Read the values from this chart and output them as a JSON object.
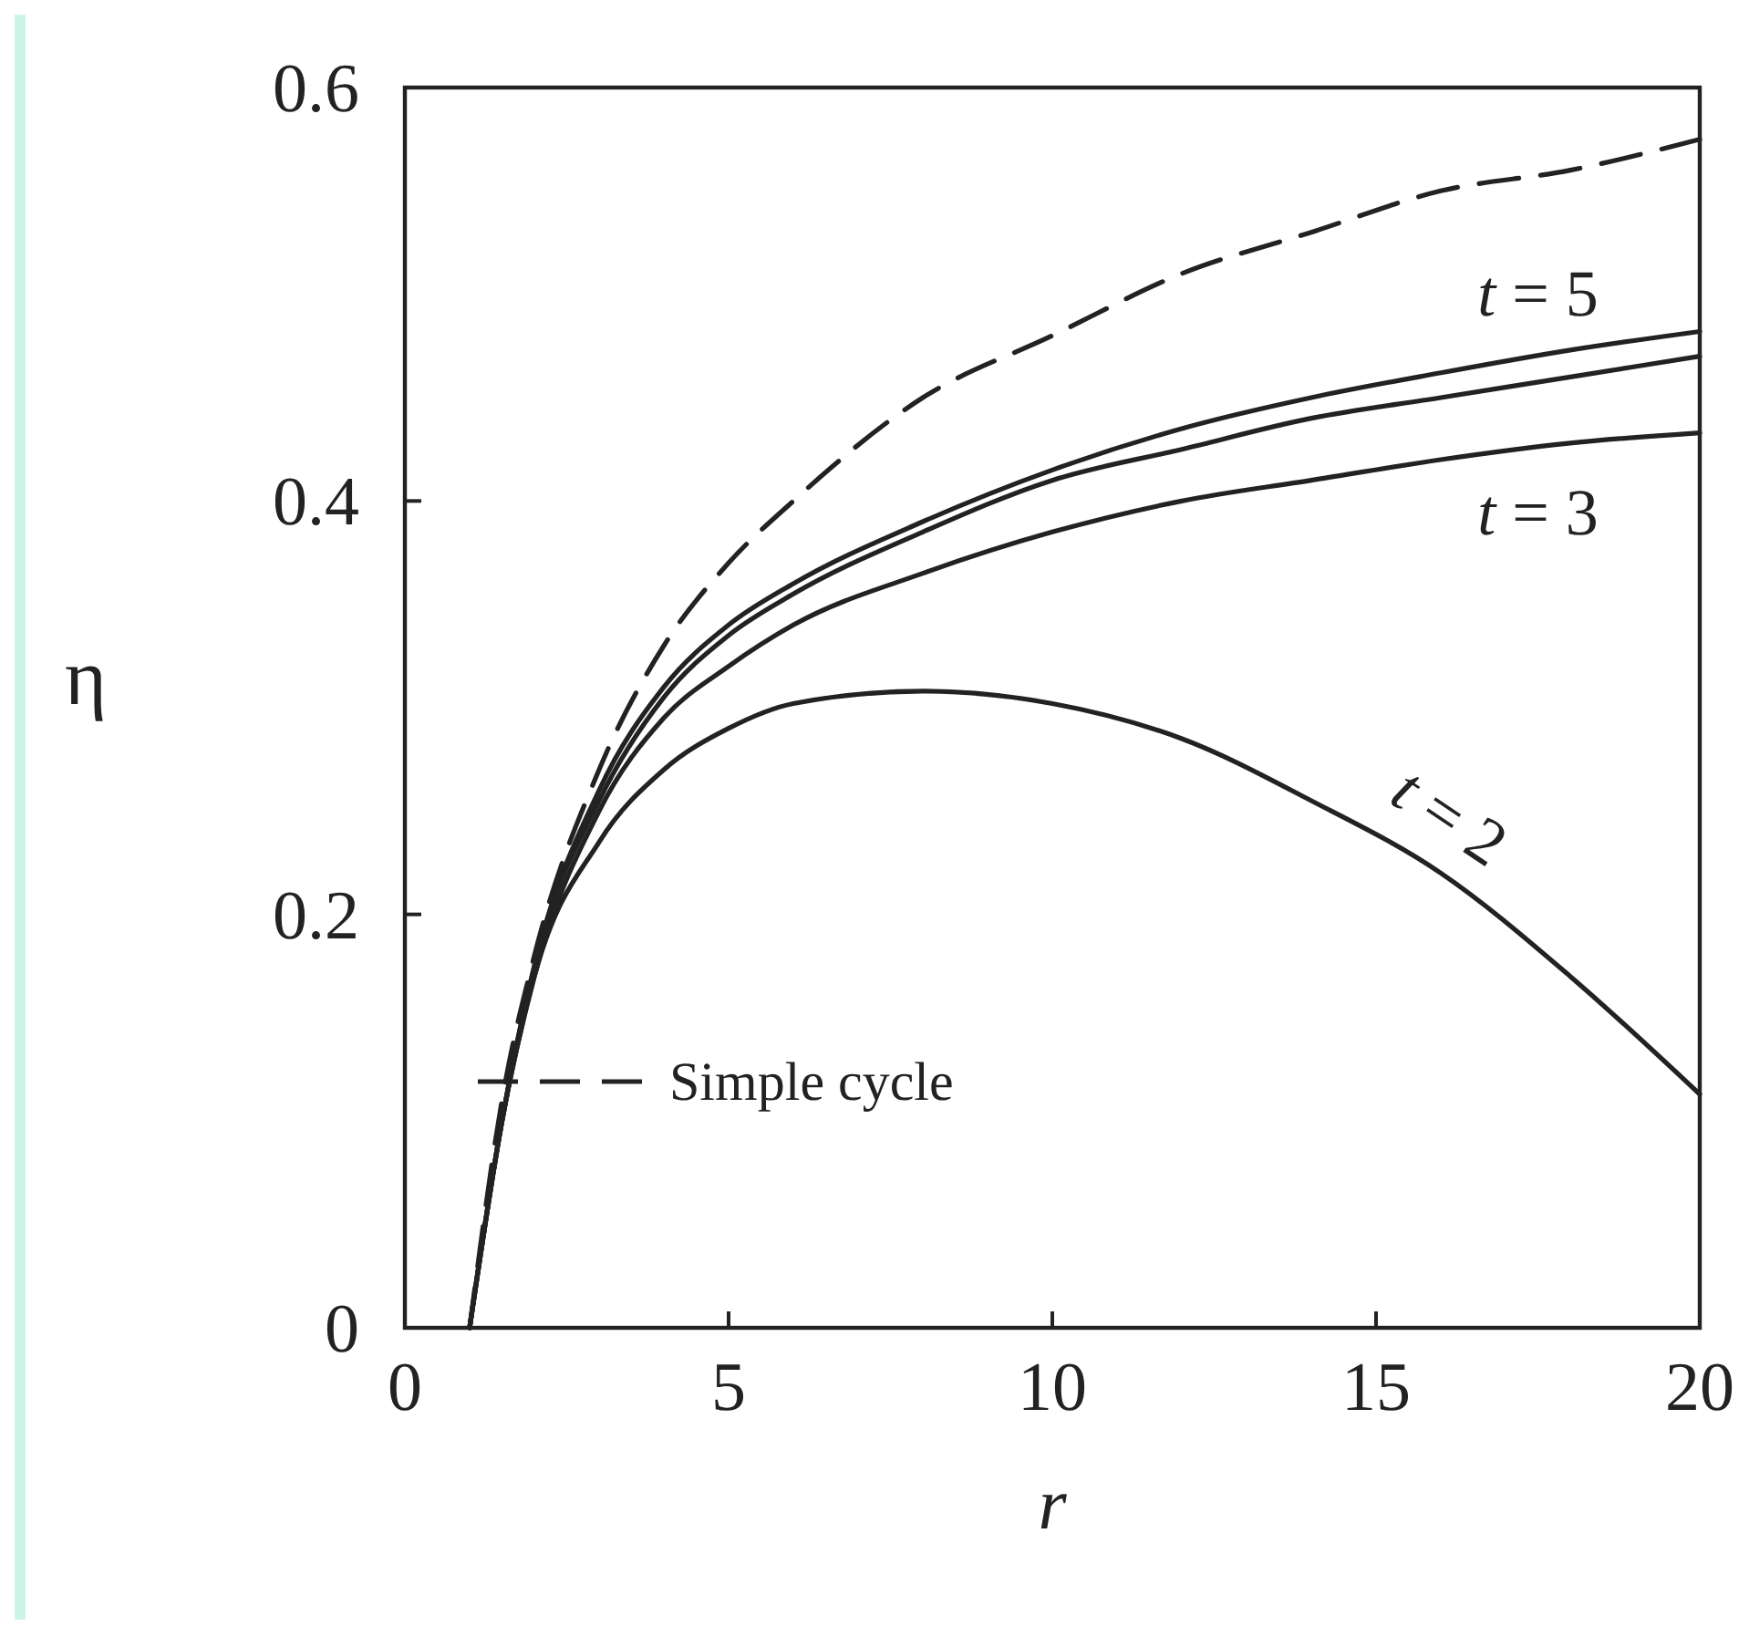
{
  "chart_data": {
    "type": "line",
    "xlabel": "r",
    "ylabel": "η",
    "xlim": [
      0,
      20
    ],
    "ylim": [
      0,
      0.6
    ],
    "xticks": [
      0,
      5,
      10,
      15,
      20
    ],
    "yticks": [
      0,
      0.2,
      0.4,
      0.6
    ],
    "legend": "bottom left",
    "series": [
      {
        "name": "Simple cycle",
        "color": "#222222",
        "line_style": "dashed",
        "x": [
          1,
          1.5,
          2,
          3,
          4,
          5,
          6,
          8,
          10,
          12,
          14,
          16,
          18,
          20
        ],
        "values": [
          0,
          0.11,
          0.18,
          0.27,
          0.33,
          0.37,
          0.4,
          0.45,
          0.48,
          0.51,
          0.53,
          0.55,
          0.56,
          0.575
        ]
      },
      {
        "name": "t = 5",
        "color": "#222222",
        "line_style": "solid",
        "x": [
          1,
          1.5,
          2,
          3,
          4,
          5,
          6,
          8,
          10,
          12,
          14,
          16,
          18,
          20
        ],
        "values": [
          0,
          0.1,
          0.175,
          0.26,
          0.31,
          0.34,
          0.36,
          0.39,
          0.415,
          0.435,
          0.45,
          0.462,
          0.473,
          0.482
        ]
      },
      {
        "color": "#222222",
        "line_style": "solid",
        "x": [
          1,
          1.5,
          2,
          3,
          4,
          5,
          6,
          8,
          10,
          12,
          14,
          16,
          18,
          20
        ],
        "values": [
          0,
          0.1,
          0.175,
          0.255,
          0.305,
          0.335,
          0.355,
          0.385,
          0.41,
          0.425,
          0.44,
          0.45,
          0.46,
          0.47
        ]
      },
      {
        "name": "t = 3",
        "color": "#222222",
        "line_style": "solid",
        "x": [
          1,
          1.5,
          2,
          3,
          4,
          5,
          6,
          8,
          10,
          12,
          14,
          16,
          18,
          20
        ],
        "values": [
          0,
          0.1,
          0.17,
          0.25,
          0.295,
          0.32,
          0.34,
          0.365,
          0.385,
          0.4,
          0.41,
          0.42,
          0.428,
          0.433
        ]
      },
      {
        "name": "t = 2",
        "color": "#222222",
        "line_style": "solid",
        "x": [
          1,
          1.5,
          2,
          3,
          4,
          5,
          6,
          8,
          10,
          12,
          14,
          16,
          18,
          20
        ],
        "values": [
          0,
          0.1,
          0.17,
          0.235,
          0.27,
          0.29,
          0.302,
          0.308,
          0.302,
          0.285,
          0.255,
          0.22,
          0.17,
          0.113
        ]
      }
    ]
  }
}
